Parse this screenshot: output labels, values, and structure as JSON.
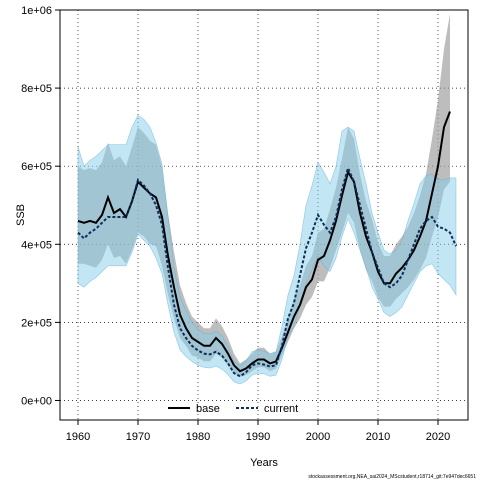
{
  "chart_data": {
    "type": "line",
    "xlabel": "Years",
    "ylabel": "SSB",
    "xlim": [
      1957,
      2025
    ],
    "ylim": [
      -50000,
      1000000
    ],
    "x_ticks": [
      1960,
      1970,
      1980,
      1990,
      2000,
      2010,
      2020
    ],
    "y_ticks": [
      0,
      200000,
      400000,
      600000,
      800000,
      1000000
    ],
    "y_tick_labels": [
      "0e+00",
      "2e+05",
      "4e+05",
      "6e+05",
      "8e+05",
      "1e+06"
    ],
    "grid": true,
    "legend_position": "bottom",
    "footer": "stockassessment.org,NEA_sai2024_MScstudent,r18714_git:7e947dec6651",
    "x": [
      1960,
      1961,
      1962,
      1963,
      1964,
      1965,
      1966,
      1967,
      1968,
      1969,
      1970,
      1971,
      1972,
      1973,
      1974,
      1975,
      1976,
      1977,
      1978,
      1979,
      1980,
      1981,
      1982,
      1983,
      1984,
      1985,
      1986,
      1987,
      1988,
      1989,
      1990,
      1991,
      1992,
      1993,
      1994,
      1995,
      1996,
      1997,
      1998,
      1999,
      2000,
      2001,
      2002,
      2003,
      2004,
      2005,
      2006,
      2007,
      2008,
      2009,
      2010,
      2011,
      2012,
      2013,
      2014,
      2015,
      2016,
      2017,
      2018,
      2019,
      2020,
      2021,
      2022,
      2023
    ],
    "series": [
      {
        "name": "base",
        "color": "#000000",
        "band_color": "#9a9a9a",
        "x_end": 2022,
        "values": [
          460000,
          455000,
          460000,
          455000,
          475000,
          520000,
          480000,
          490000,
          470000,
          510000,
          560000,
          545000,
          530000,
          520000,
          470000,
          370000,
          290000,
          220000,
          185000,
          160000,
          150000,
          140000,
          140000,
          160000,
          145000,
          120000,
          90000,
          75000,
          82000,
          95000,
          105000,
          105000,
          95000,
          100000,
          135000,
          175000,
          215000,
          245000,
          290000,
          310000,
          360000,
          370000,
          410000,
          460000,
          525000,
          585000,
          560000,
          480000,
          420000,
          380000,
          330000,
          300000,
          300000,
          325000,
          340000,
          360000,
          385000,
          420000,
          460000,
          530000,
          600000,
          700000,
          740000,
          null
        ],
        "lower": [
          350000,
          350000,
          345000,
          340000,
          360000,
          400000,
          365000,
          370000,
          350000,
          385000,
          430000,
          420000,
          400000,
          395000,
          345000,
          270000,
          210000,
          160000,
          140000,
          115000,
          110000,
          100000,
          100000,
          120000,
          110000,
          90000,
          70000,
          60000,
          65000,
          75000,
          85000,
          85000,
          75000,
          82000,
          115000,
          150000,
          185000,
          210000,
          245000,
          265000,
          305000,
          305000,
          340000,
          385000,
          430000,
          480000,
          455000,
          385000,
          335000,
          305000,
          265000,
          240000,
          240000,
          260000,
          275000,
          290000,
          310000,
          335000,
          365000,
          420000,
          470000,
          540000,
          560000,
          null
        ],
        "upper": [
          600000,
          590000,
          595000,
          590000,
          610000,
          660000,
          615000,
          625000,
          600000,
          650000,
          700000,
          685000,
          665000,
          655000,
          600000,
          480000,
          380000,
          295000,
          250000,
          215000,
          200000,
          185000,
          185000,
          210000,
          190000,
          160000,
          120000,
          95000,
          105000,
          120000,
          135000,
          135000,
          120000,
          125000,
          165000,
          210000,
          260000,
          295000,
          345000,
          370000,
          430000,
          440000,
          490000,
          545000,
          620000,
          700000,
          670000,
          580000,
          510000,
          465000,
          405000,
          370000,
          370000,
          400000,
          420000,
          445000,
          480000,
          525000,
          580000,
          670000,
          770000,
          900000,
          990000,
          null
        ]
      },
      {
        "name": "current",
        "color": "#0d2f5c",
        "band_color": "#87ceeb",
        "x_end": 2023,
        "values": [
          430000,
          415000,
          430000,
          440000,
          455000,
          470000,
          470000,
          470000,
          470000,
          510000,
          565000,
          550000,
          530000,
          500000,
          450000,
          340000,
          245000,
          185000,
          160000,
          140000,
          128000,
          120000,
          118000,
          125000,
          115000,
          95000,
          70000,
          62000,
          72000,
          90000,
          95000,
          92000,
          87000,
          90000,
          140000,
          210000,
          250000,
          320000,
          390000,
          430000,
          475000,
          450000,
          430000,
          470000,
          540000,
          595000,
          560000,
          500000,
          440000,
          380000,
          340000,
          300000,
          290000,
          300000,
          320000,
          360000,
          400000,
          440000,
          460000,
          470000,
          445000,
          440000,
          430000,
          395000
        ],
        "lower": [
          300000,
          290000,
          305000,
          315000,
          330000,
          345000,
          345000,
          345000,
          345000,
          380000,
          425000,
          410000,
          395000,
          365000,
          325000,
          245000,
          175000,
          130000,
          112000,
          100000,
          90000,
          85000,
          83000,
          88000,
          80000,
          66000,
          48000,
          42000,
          50000,
          65000,
          70000,
          68000,
          62000,
          65000,
          105000,
          165000,
          190000,
          245000,
          300000,
          335000,
          370000,
          345000,
          330000,
          365000,
          420000,
          465000,
          430000,
          385000,
          340000,
          290000,
          260000,
          225000,
          215000,
          225000,
          240000,
          270000,
          300000,
          330000,
          345000,
          350000,
          325000,
          310000,
          295000,
          270000
        ],
        "upper": [
          650000,
          600000,
          615000,
          625000,
          640000,
          655000,
          655000,
          655000,
          655000,
          700000,
          730000,
          720000,
          700000,
          660000,
          605000,
          470000,
          340000,
          265000,
          230000,
          200000,
          182000,
          172000,
          170000,
          178000,
          165000,
          137000,
          100000,
          88000,
          100000,
          125000,
          130000,
          126000,
          120000,
          125000,
          190000,
          270000,
          320000,
          400000,
          500000,
          550000,
          610000,
          585000,
          555000,
          600000,
          690000,
          700000,
          690000,
          620000,
          555000,
          480000,
          430000,
          385000,
          375000,
          385000,
          410000,
          460000,
          505000,
          555000,
          575000,
          580000,
          565000,
          565000,
          570000,
          570000
        ]
      }
    ]
  }
}
